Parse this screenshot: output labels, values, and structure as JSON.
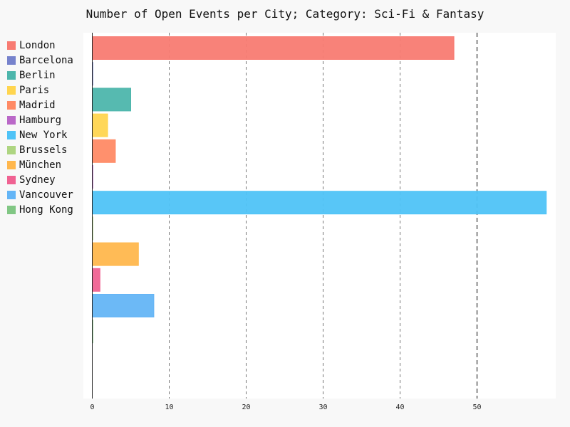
{
  "chart_data": {
    "type": "bar",
    "orientation": "horizontal",
    "title": "Number of Open Events per City; Category: Sci-Fi & Fantasy",
    "xlabel": "",
    "ylabel": "",
    "xlim": [
      0,
      59
    ],
    "x_ticks": [
      "0",
      "10",
      "20",
      "30",
      "40",
      "50"
    ],
    "grid": "vertical dashed",
    "legend_position": "left",
    "categories": [
      "London",
      "Barcelona",
      "Berlin",
      "Paris",
      "Madrid",
      "Hamburg",
      "New York",
      "Brussels",
      "München",
      "Sydney",
      "Vancouver",
      "Hong Kong"
    ],
    "values": [
      47,
      0,
      5,
      2,
      3,
      0,
      59,
      0,
      6,
      1,
      8,
      0
    ],
    "colors": [
      "#f87b72",
      "#7682cc",
      "#4db6ac",
      "#ffd54f",
      "#ff8a65",
      "#ba68c8",
      "#4fc3f7",
      "#aed581",
      "#ffb74d",
      "#f06292",
      "#64b5f6",
      "#81c784"
    ]
  }
}
